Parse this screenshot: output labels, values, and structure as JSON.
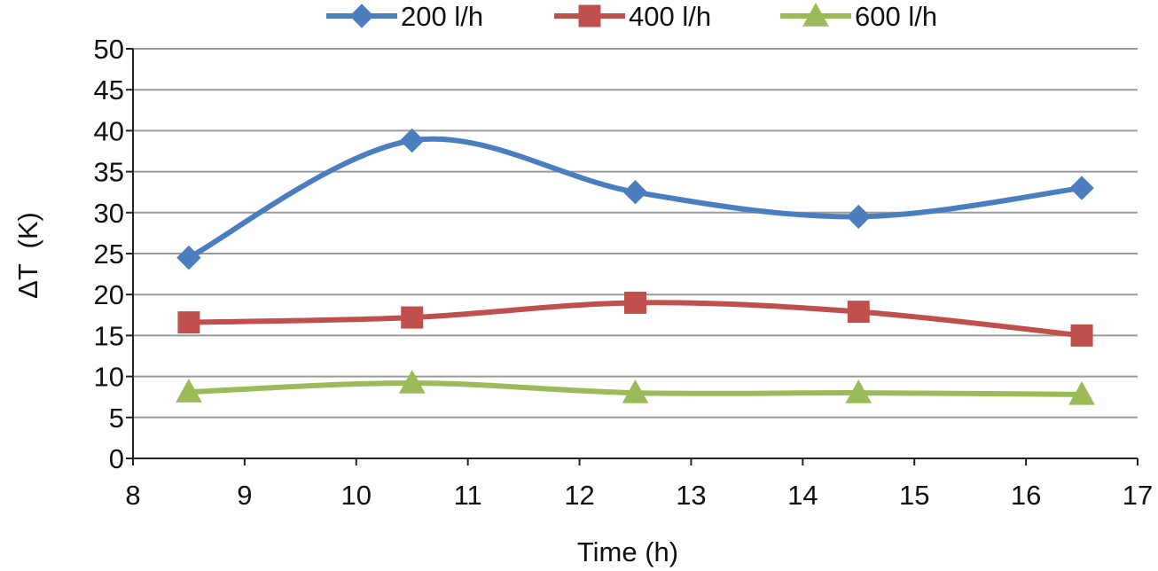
{
  "chart_data": {
    "type": "line",
    "title": "",
    "xlabel": "Time (h)",
    "ylabel": "ΔT  (K)",
    "xlim": [
      8,
      17
    ],
    "ylim": [
      0,
      50
    ],
    "xticks": [
      8,
      9,
      10,
      11,
      12,
      13,
      14,
      15,
      16,
      17
    ],
    "yticks": [
      0,
      5,
      10,
      15,
      20,
      25,
      30,
      35,
      40,
      45,
      50
    ],
    "grid": true,
    "legend_position": "top",
    "series": [
      {
        "name": "200 l/h",
        "color": "#4a7ebf",
        "marker": "diamond",
        "x": [
          8.5,
          10.5,
          12.5,
          14.5,
          16.5
        ],
        "y": [
          24.5,
          38.8,
          32.5,
          29.5,
          33.0
        ]
      },
      {
        "name": "400 l/h",
        "color": "#c0504d",
        "marker": "square",
        "x": [
          8.5,
          10.5,
          12.5,
          14.5,
          16.5
        ],
        "y": [
          16.6,
          17.2,
          19.0,
          17.9,
          15.0
        ]
      },
      {
        "name": "600 l/h",
        "color": "#9bbb59",
        "marker": "triangle",
        "x": [
          8.5,
          10.5,
          12.5,
          14.5,
          16.5
        ],
        "y": [
          8.1,
          9.2,
          8.0,
          8.0,
          7.8
        ]
      }
    ]
  }
}
